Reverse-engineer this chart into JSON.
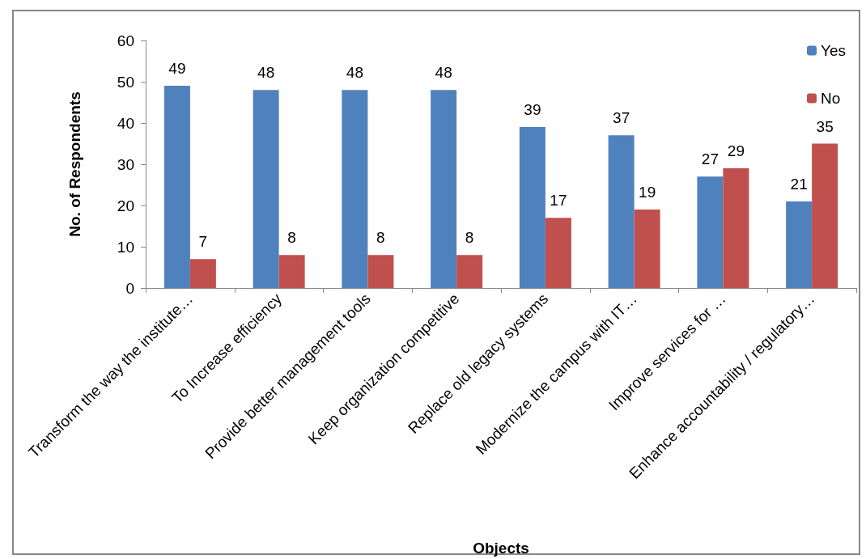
{
  "chart_data": {
    "type": "bar",
    "xlabel": "Objects",
    "ylabel": "No. of Respondents",
    "categories": [
      "Transform the way the institute…",
      "To Increase efficiency",
      "Provide better management tools",
      "Keep organization competitive",
      "Replace old legacy systems",
      "Modernize the campus with IT…",
      "Improve services for …",
      "Enhance accountability / regulatory…"
    ],
    "series": [
      {
        "name": "Yes",
        "color": "#4f81bd",
        "values": [
          49,
          48,
          48,
          48,
          39,
          37,
          27,
          21
        ]
      },
      {
        "name": "No",
        "color": "#c0504d",
        "values": [
          7,
          8,
          8,
          8,
          17,
          19,
          29,
          35
        ]
      }
    ],
    "ylim": [
      0,
      60
    ],
    "yticks": [
      0,
      10,
      20,
      30,
      40,
      50,
      60
    ],
    "grid": false,
    "legend": "top right",
    "data_labels": true
  }
}
